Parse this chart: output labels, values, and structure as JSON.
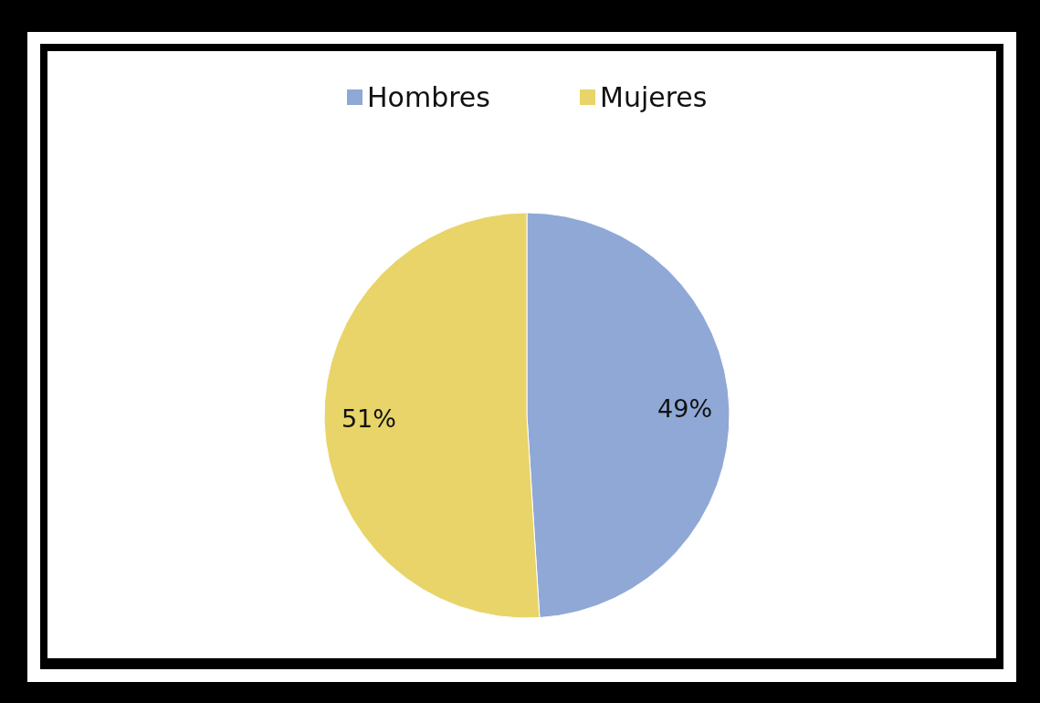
{
  "chart_data": {
    "type": "pie",
    "categories": [
      "Hombres",
      "Mujeres"
    ],
    "values": [
      49,
      51
    ],
    "colors": [
      "#8fa8d6",
      "#e8d468"
    ],
    "value_labels": [
      "49%",
      "51%"
    ],
    "legend": "top"
  }
}
